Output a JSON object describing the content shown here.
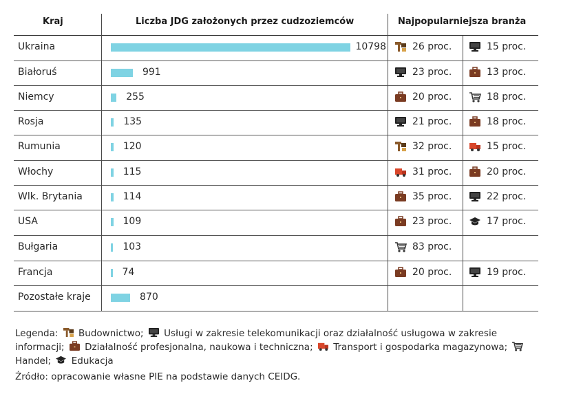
{
  "headers": {
    "country": "Kraj",
    "count": "Liczba JDG założonych przez cudzoziemców",
    "industry": "Najpopularniejsza branża"
  },
  "chart_data": {
    "type": "bar",
    "categories": [
      "Ukraina",
      "Białoruś",
      "Niemcy",
      "Rosja",
      "Rumunia",
      "Włochy",
      "Wlk. Brytania",
      "USA",
      "Bułgaria",
      "Francja",
      "Pozostałe kraje"
    ],
    "values": [
      10798,
      991,
      255,
      135,
      120,
      115,
      114,
      109,
      103,
      74,
      870
    ],
    "value_labels": [
      "10798",
      "991",
      "255",
      "135",
      "120",
      "115",
      "114",
      "109",
      "103",
      "74",
      "870"
    ],
    "bar_color": "#7fd3e3"
  },
  "industries": [
    [
      {
        "icon": "construction-icon",
        "text": "26 proc."
      },
      {
        "icon": "computer-icon",
        "text": "15 proc."
      }
    ],
    [
      {
        "icon": "computer-icon",
        "text": "23 proc."
      },
      {
        "icon": "briefcase-icon",
        "text": "13 proc."
      }
    ],
    [
      {
        "icon": "briefcase-icon",
        "text": "20 proc."
      },
      {
        "icon": "cart-icon",
        "text": "18 proc."
      }
    ],
    [
      {
        "icon": "computer-icon",
        "text": "21 proc."
      },
      {
        "icon": "briefcase-icon",
        "text": "18 proc."
      }
    ],
    [
      {
        "icon": "construction-icon",
        "text": "32 proc."
      },
      {
        "icon": "truck-icon",
        "text": "15 proc."
      }
    ],
    [
      {
        "icon": "truck-icon",
        "text": "31 proc."
      },
      {
        "icon": "briefcase-icon",
        "text": "20 proc."
      }
    ],
    [
      {
        "icon": "briefcase-icon",
        "text": "35 proc."
      },
      {
        "icon": "computer-icon",
        "text": "22 proc."
      }
    ],
    [
      {
        "icon": "briefcase-icon",
        "text": "23 proc."
      },
      {
        "icon": "graduation-cap-icon",
        "text": "17 proc."
      }
    ],
    [
      {
        "icon": "cart-icon",
        "text": "83 proc."
      },
      null
    ],
    [
      {
        "icon": "briefcase-icon",
        "text": "20 proc."
      },
      {
        "icon": "computer-icon",
        "text": "19 proc."
      }
    ],
    [
      null,
      null
    ]
  ],
  "legend": {
    "prefix": "Legenda:",
    "items": [
      {
        "icon": "construction-icon",
        "text": "Budownictwo;"
      },
      {
        "icon": "computer-icon",
        "text": "Usługi w zakresie telekomunikacji oraz działalność usługowa w zakresie informacji;"
      },
      {
        "icon": "briefcase-icon",
        "text": "Działalność profesjonalna, naukowa i techniczna;"
      },
      {
        "icon": "truck-icon",
        "text": "Transport i gospodarka magazynowa;"
      },
      {
        "icon": "cart-icon",
        "text": "Handel;"
      },
      {
        "icon": "graduation-cap-icon",
        "text": "Edukacja"
      }
    ]
  },
  "source": "Źródło: opracowanie własne PIE na podstawie danych CEIDG.",
  "colors": {
    "bar": "#7fd3e3",
    "construction": "#8a5a2b",
    "computer": "#222222",
    "briefcase": "#7a3b22",
    "truck": "#d9472b",
    "cart": "#333333",
    "graduation_cap": "#222222"
  }
}
